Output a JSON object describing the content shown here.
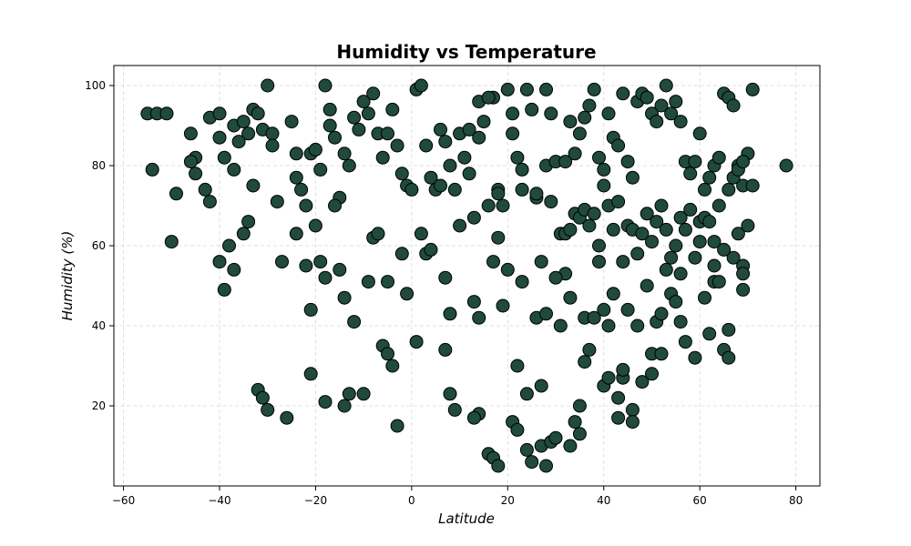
{
  "chart_data": {
    "type": "scatter",
    "title": "Humidity vs Temperature",
    "xlabel": "Latitude",
    "ylabel": "Humidity (%)",
    "xlim": [
      -62,
      85
    ],
    "ylim": [
      0,
      105
    ],
    "xticks": [
      -60,
      -40,
      -20,
      0,
      20,
      40,
      60,
      80
    ],
    "yticks": [
      20,
      40,
      60,
      80,
      100
    ],
    "grid": true,
    "marker_fill": "#1f4a3d",
    "marker_edge": "#000000",
    "series": [
      {
        "points": [
          [
            -55,
            93
          ],
          [
            -53,
            93
          ],
          [
            -51,
            93
          ],
          [
            -54,
            79
          ],
          [
            -49,
            73
          ],
          [
            -50,
            61
          ],
          [
            -46,
            88
          ],
          [
            -45,
            82
          ],
          [
            -46,
            81
          ],
          [
            -45,
            78
          ],
          [
            -43,
            74
          ],
          [
            -42,
            71
          ],
          [
            -42,
            92
          ],
          [
            -40,
            93
          ],
          [
            -40,
            87
          ],
          [
            -39,
            82
          ],
          [
            -37,
            79
          ],
          [
            -37,
            90
          ],
          [
            -36,
            86
          ],
          [
            -35,
            91
          ],
          [
            -34,
            88
          ],
          [
            -33,
            94
          ],
          [
            -32,
            93
          ],
          [
            -31,
            89
          ],
          [
            -30,
            100
          ],
          [
            -29,
            88
          ],
          [
            -29,
            85
          ],
          [
            -28,
            71
          ],
          [
            -27,
            56
          ],
          [
            -25,
            91
          ],
          [
            -24,
            83
          ],
          [
            -24,
            77
          ],
          [
            -23,
            74
          ],
          [
            -22,
            70
          ],
          [
            -21,
            83
          ],
          [
            -20,
            84
          ],
          [
            -19,
            79
          ],
          [
            -18,
            100
          ],
          [
            -17,
            94
          ],
          [
            -17,
            90
          ],
          [
            -16,
            87
          ],
          [
            -15,
            72
          ],
          [
            -14,
            83
          ],
          [
            -13,
            80
          ],
          [
            -12,
            92
          ],
          [
            -11,
            89
          ],
          [
            -10,
            96
          ],
          [
            -9,
            93
          ],
          [
            -8,
            98
          ],
          [
            -7,
            88
          ],
          [
            -6,
            82
          ],
          [
            -5,
            88
          ],
          [
            -4,
            94
          ],
          [
            -3,
            85
          ],
          [
            -2,
            78
          ],
          [
            -1,
            75
          ],
          [
            0,
            74
          ],
          [
            1,
            99
          ],
          [
            2,
            100
          ],
          [
            3,
            85
          ],
          [
            4,
            77
          ],
          [
            5,
            74
          ],
          [
            6,
            89
          ],
          [
            7,
            86
          ],
          [
            8,
            80
          ],
          [
            9,
            74
          ],
          [
            10,
            88
          ],
          [
            11,
            82
          ],
          [
            12,
            78
          ],
          [
            13,
            67
          ],
          [
            14,
            96
          ],
          [
            15,
            91
          ],
          [
            16,
            70
          ],
          [
            17,
            97
          ],
          [
            18,
            74
          ],
          [
            19,
            70
          ],
          [
            20,
            99
          ],
          [
            21,
            93
          ],
          [
            22,
            82
          ],
          [
            23,
            79
          ],
          [
            24,
            99
          ],
          [
            25,
            94
          ],
          [
            26,
            72
          ],
          [
            27,
            56
          ],
          [
            28,
            80
          ],
          [
            29,
            93
          ],
          [
            30,
            81
          ],
          [
            31,
            63
          ],
          [
            32,
            81
          ],
          [
            33,
            91
          ],
          [
            34,
            83
          ],
          [
            35,
            88
          ],
          [
            36,
            92
          ],
          [
            37,
            95
          ],
          [
            38,
            99
          ],
          [
            39,
            82
          ],
          [
            40,
            79
          ],
          [
            41,
            93
          ],
          [
            42,
            87
          ],
          [
            43,
            85
          ],
          [
            44,
            98
          ],
          [
            45,
            81
          ],
          [
            46,
            77
          ],
          [
            47,
            96
          ],
          [
            48,
            98
          ],
          [
            49,
            97
          ],
          [
            50,
            93
          ],
          [
            51,
            91
          ],
          [
            52,
            95
          ],
          [
            53,
            100
          ],
          [
            54,
            93
          ],
          [
            55,
            96
          ],
          [
            56,
            91
          ],
          [
            57,
            81
          ],
          [
            58,
            78
          ],
          [
            59,
            81
          ],
          [
            60,
            88
          ],
          [
            61,
            74
          ],
          [
            62,
            77
          ],
          [
            63,
            80
          ],
          [
            64,
            82
          ],
          [
            65,
            98
          ],
          [
            66,
            97
          ],
          [
            67,
            95
          ],
          [
            68,
            80
          ],
          [
            69,
            75
          ],
          [
            70,
            83
          ],
          [
            71,
            99
          ],
          [
            78,
            80
          ],
          [
            -38,
            60
          ],
          [
            -39,
            49
          ],
          [
            -40,
            56
          ],
          [
            -37,
            54
          ],
          [
            -35,
            63
          ],
          [
            -34,
            66
          ],
          [
            -33,
            75
          ],
          [
            -32,
            24
          ],
          [
            -31,
            22
          ],
          [
            -30,
            19
          ],
          [
            -26,
            17
          ],
          [
            -24,
            63
          ],
          [
            -22,
            55
          ],
          [
            -21,
            28
          ],
          [
            -21,
            44
          ],
          [
            -20,
            65
          ],
          [
            -19,
            56
          ],
          [
            -18,
            52
          ],
          [
            -18,
            21
          ],
          [
            -16,
            70
          ],
          [
            -15,
            54
          ],
          [
            -14,
            20
          ],
          [
            -14,
            47
          ],
          [
            -13,
            23
          ],
          [
            -12,
            41
          ],
          [
            -10,
            23
          ],
          [
            -9,
            51
          ],
          [
            -8,
            62
          ],
          [
            -7,
            63
          ],
          [
            -6,
            35
          ],
          [
            -5,
            33
          ],
          [
            -5,
            51
          ],
          [
            -4,
            30
          ],
          [
            -3,
            15
          ],
          [
            -2,
            58
          ],
          [
            -1,
            48
          ],
          [
            1,
            36
          ],
          [
            2,
            63
          ],
          [
            3,
            58
          ],
          [
            4,
            59
          ],
          [
            7,
            34
          ],
          [
            7,
            52
          ],
          [
            8,
            43
          ],
          [
            8,
            23
          ],
          [
            9,
            19
          ],
          [
            10,
            65
          ],
          [
            13,
            46
          ],
          [
            14,
            42
          ],
          [
            14,
            18
          ],
          [
            13,
            17
          ],
          [
            16,
            8
          ],
          [
            17,
            7
          ],
          [
            17,
            56
          ],
          [
            18,
            62
          ],
          [
            18,
            5
          ],
          [
            19,
            45
          ],
          [
            20,
            54
          ],
          [
            21,
            16
          ],
          [
            22,
            14
          ],
          [
            22,
            30
          ],
          [
            23,
            51
          ],
          [
            24,
            23
          ],
          [
            24,
            9
          ],
          [
            25,
            6
          ],
          [
            26,
            42
          ],
          [
            27,
            25
          ],
          [
            27,
            10
          ],
          [
            28,
            43
          ],
          [
            28,
            5
          ],
          [
            29,
            11
          ],
          [
            30,
            12
          ],
          [
            31,
            40
          ],
          [
            32,
            53
          ],
          [
            33,
            47
          ],
          [
            33,
            10
          ],
          [
            34,
            16
          ],
          [
            35,
            13
          ],
          [
            35,
            20
          ],
          [
            36,
            42
          ],
          [
            36,
            31
          ],
          [
            37,
            34
          ],
          [
            38,
            42
          ],
          [
            39,
            56
          ],
          [
            40,
            25
          ],
          [
            40,
            44
          ],
          [
            41,
            27
          ],
          [
            41,
            40
          ],
          [
            42,
            48
          ],
          [
            43,
            17
          ],
          [
            43,
            22
          ],
          [
            44,
            27
          ],
          [
            44,
            29
          ],
          [
            45,
            44
          ],
          [
            46,
            19
          ],
          [
            46,
            16
          ],
          [
            47,
            40
          ],
          [
            48,
            26
          ],
          [
            49,
            50
          ],
          [
            50,
            28
          ],
          [
            50,
            33
          ],
          [
            51,
            41
          ],
          [
            52,
            33
          ],
          [
            52,
            43
          ],
          [
            53,
            54
          ],
          [
            54,
            48
          ],
          [
            55,
            46
          ],
          [
            56,
            41
          ],
          [
            56,
            53
          ],
          [
            57,
            36
          ],
          [
            59,
            32
          ],
          [
            60,
            61
          ],
          [
            61,
            47
          ],
          [
            62,
            38
          ],
          [
            63,
            55
          ],
          [
            63,
            51
          ],
          [
            64,
            51
          ],
          [
            65,
            34
          ],
          [
            66,
            32
          ],
          [
            66,
            39
          ],
          [
            67,
            57
          ],
          [
            68,
            63
          ],
          [
            69,
            55
          ],
          [
            69,
            53
          ],
          [
            69,
            49
          ],
          [
            70,
            65
          ],
          [
            71,
            75
          ],
          [
            6,
            75
          ],
          [
            12,
            89
          ],
          [
            14,
            87
          ],
          [
            16,
            97
          ],
          [
            18,
            73
          ],
          [
            21,
            88
          ],
          [
            23,
            74
          ],
          [
            26,
            73
          ],
          [
            28,
            99
          ],
          [
            29,
            71
          ],
          [
            30,
            52
          ],
          [
            32,
            63
          ],
          [
            33,
            64
          ],
          [
            34,
            68
          ],
          [
            35,
            67
          ],
          [
            36,
            69
          ],
          [
            37,
            65
          ],
          [
            38,
            68
          ],
          [
            39,
            60
          ],
          [
            40,
            75
          ],
          [
            41,
            70
          ],
          [
            42,
            64
          ],
          [
            43,
            71
          ],
          [
            44,
            56
          ],
          [
            45,
            65
          ],
          [
            46,
            64
          ],
          [
            47,
            58
          ],
          [
            48,
            63
          ],
          [
            49,
            68
          ],
          [
            50,
            61
          ],
          [
            51,
            66
          ],
          [
            52,
            70
          ],
          [
            53,
            64
          ],
          [
            54,
            57
          ],
          [
            55,
            60
          ],
          [
            56,
            67
          ],
          [
            57,
            64
          ],
          [
            58,
            69
          ],
          [
            59,
            57
          ],
          [
            60,
            66
          ],
          [
            61,
            67
          ],
          [
            62,
            66
          ],
          [
            63,
            61
          ],
          [
            64,
            70
          ],
          [
            65,
            59
          ],
          [
            66,
            74
          ],
          [
            67,
            77
          ],
          [
            68,
            79
          ],
          [
            69,
            81
          ]
        ]
      }
    ]
  }
}
